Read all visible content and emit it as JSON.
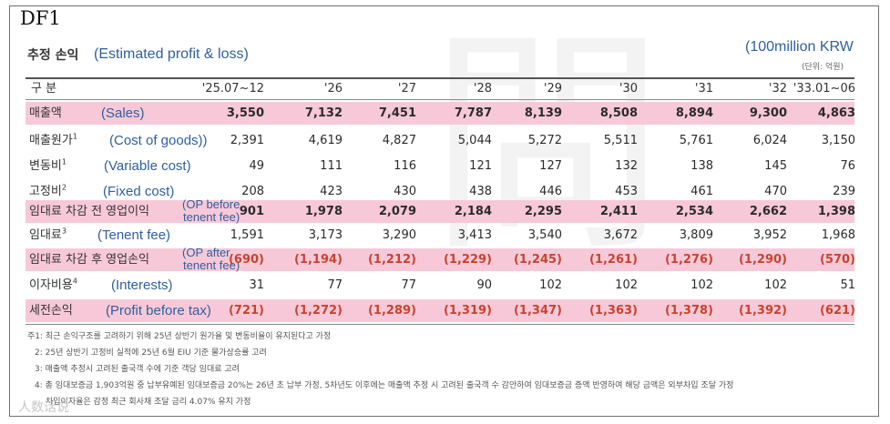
{
  "title": "DF1",
  "section": {
    "title_ko": "추정 손익",
    "title_en": "(Estimated profit & loss)"
  },
  "unit": {
    "en": "(100million KRW",
    "ko": "(단위: 억원)"
  },
  "header": {
    "label": "구 분",
    "columns": [
      "'25.07~12",
      "'26",
      "'27",
      "'28",
      "'29",
      "'30",
      "'31",
      "'32",
      "'33.01~06"
    ]
  },
  "rows": [
    {
      "ko": "매출액",
      "sup": "",
      "en": "(Sales)",
      "values": [
        "3,550",
        "7,132",
        "7,451",
        "7,787",
        "8,139",
        "8,508",
        "8,894",
        "9,300",
        "4,863"
      ]
    },
    {
      "ko": "매출원가",
      "sup": "1",
      "en": "(Cost of goods))",
      "values": [
        "2,391",
        "4,619",
        "4,827",
        "5,044",
        "5,272",
        "5,511",
        "5,761",
        "6,024",
        "3,150"
      ]
    },
    {
      "ko": "변동비",
      "sup": "1",
      "en": "(Variable cost)",
      "values": [
        "49",
        "111",
        "116",
        "121",
        "127",
        "132",
        "138",
        "145",
        "76"
      ]
    },
    {
      "ko": "고정비",
      "sup": "2",
      "en": "(Fixed cost)",
      "values": [
        "208",
        "423",
        "430",
        "438",
        "446",
        "453",
        "461",
        "470",
        "239"
      ]
    },
    {
      "ko": "임대료 차감 전 영업이익",
      "sup": "",
      "en1": "(OP before",
      "en2": "tenent fee)",
      "values": [
        "901",
        "1,978",
        "2,079",
        "2,184",
        "2,295",
        "2,411",
        "2,534",
        "2,662",
        "1,398"
      ]
    },
    {
      "ko": "임대료",
      "sup": "3",
      "en": "(Tenent fee)",
      "values": [
        "1,591",
        "3,173",
        "3,290",
        "3,413",
        "3,540",
        "3,672",
        "3,809",
        "3,952",
        "1,968"
      ]
    },
    {
      "ko": "임대료 차감 후 영업손익",
      "sup": "",
      "en1": "(OP after",
      "en2": "tenent fee)",
      "values": [
        "(690)",
        "(1,194)",
        "(1,212)",
        "(1,229)",
        "(1,245)",
        "(1,261)",
        "(1,276)",
        "(1,290)",
        "(570)"
      ]
    },
    {
      "ko": "이자비용",
      "sup": "4",
      "en": "(Interests)",
      "values": [
        "31",
        "77",
        "77",
        "90",
        "102",
        "102",
        "102",
        "102",
        "51"
      ]
    },
    {
      "ko": "세전손익",
      "sup": "",
      "en": "(Profit before tax)",
      "values": [
        "(721)",
        "(1,272)",
        "(1,289)",
        "(1,319)",
        "(1,347)",
        "(1,363)",
        "(1,378)",
        "(1,392)",
        "(621)"
      ]
    }
  ],
  "notes": [
    "주1: 최근 손익구조를 고려하기 위해 25년 상반기 원가율 및 변동비율이 유지된다고 가정",
    "2: 25년 상반기 고정비 실적에 25년 6월 EIU 기준 물가상승률 고려",
    "3: 매출액 추정시 고려된 출국객 수에 기준 객당 임대료 고려",
    "4: 총 임대보증금 1,903억원 중 납부유예된 임대보증금 20%는 26년 초 납부 가정, 5차년도 이후에는 매출액 추정 시 고려된 출국객 수 감안하여 임대보증금 증액 반영하여 해당 금액은 외부차입 조달 가정",
    "차입이자율은 감정 최근 회사채 조달 금리 4.07% 유지 가정"
  ],
  "watermark": "人数话说"
}
